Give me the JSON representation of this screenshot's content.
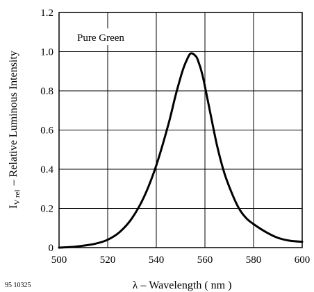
{
  "chart_data": {
    "type": "line",
    "title": "",
    "series_label": "Pure Green",
    "xlabel": "λ – Wavelength ( nm )",
    "ylabel_symbol": "I",
    "ylabel_subscript": "V rel",
    "ylabel_text": "– Relative Luminous Intensity",
    "xlim": [
      500,
      600
    ],
    "ylim": [
      0,
      1.2
    ],
    "xticks": [
      "500",
      "520",
      "540",
      "560",
      "580",
      "600"
    ],
    "xtick_values": [
      500,
      520,
      540,
      560,
      580,
      600
    ],
    "yticks": [
      "0",
      "0.2",
      "0.4",
      "0.6",
      "0.8",
      "1.0",
      "1.2"
    ],
    "ytick_values": [
      0,
      0.2,
      0.4,
      0.6,
      0.8,
      1.0,
      1.2
    ],
    "grid": true,
    "figure_id": "95 10325",
    "series": [
      {
        "x": [
          500,
          505,
          510,
          515,
          520,
          525,
          530,
          535,
          540,
          545,
          548,
          551,
          553,
          554,
          555,
          556,
          557,
          559,
          562,
          565,
          568,
          571,
          574,
          577,
          580,
          585,
          590,
          595,
          600
        ],
        "y": [
          0.0,
          0.003,
          0.01,
          0.02,
          0.04,
          0.08,
          0.15,
          0.26,
          0.42,
          0.63,
          0.78,
          0.91,
          0.97,
          0.99,
          0.99,
          0.98,
          0.96,
          0.88,
          0.7,
          0.52,
          0.38,
          0.28,
          0.2,
          0.15,
          0.12,
          0.08,
          0.05,
          0.035,
          0.03
        ]
      }
    ]
  }
}
